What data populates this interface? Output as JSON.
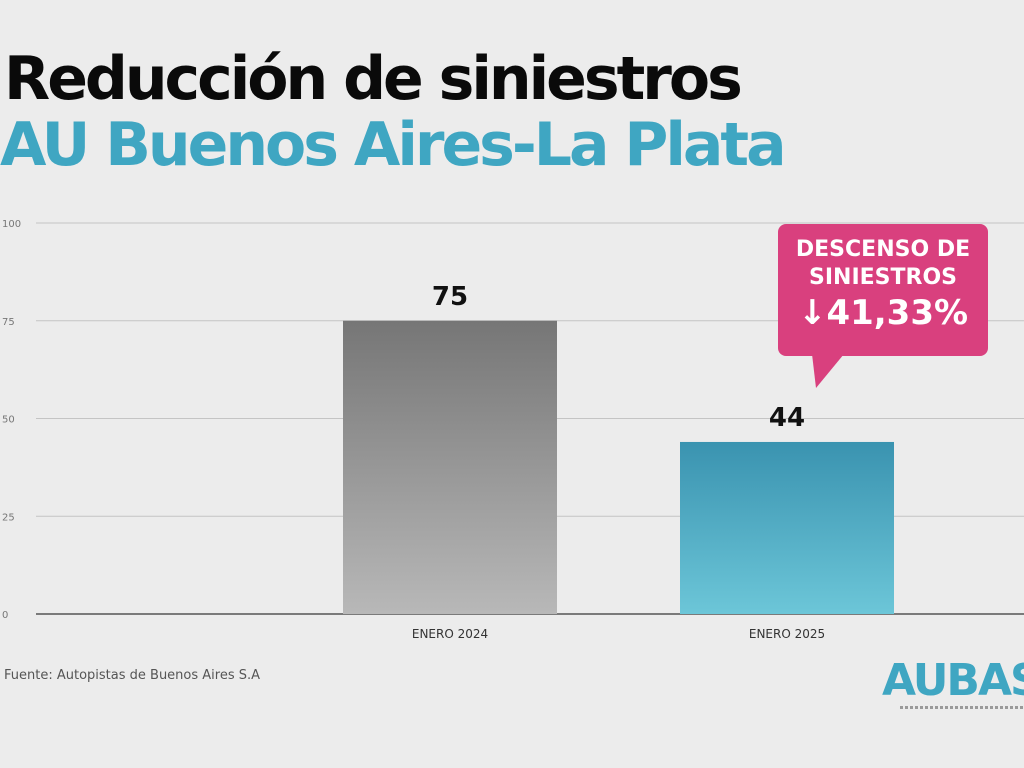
{
  "title": "Reducción de siniestros",
  "subtitle": "AU Buenos Aires-La Plata",
  "callout": {
    "line1": "DESCENSO DE",
    "line2": "SINIESTROS",
    "arrow": "🠗",
    "value": "41,33%"
  },
  "source": "Fuente: Autopistas de Buenos Aires S.A",
  "logo": "AUBAS",
  "colors": {
    "title": "#0a0a0a",
    "subtitle": "#3fa6c2",
    "callout": "#d9407e",
    "bar_2024": "#7a7a7a",
    "bar_2025": "#3f9fba"
  },
  "chart_data": {
    "type": "bar",
    "categories": [
      "ENERO 2024",
      "ENERO 2025"
    ],
    "values": [
      75,
      44
    ],
    "ylim": [
      0,
      100
    ],
    "yticks": [
      "0",
      "25",
      "50",
      "75",
      "100"
    ],
    "data_labels": [
      "75",
      "44"
    ],
    "grid": true
  }
}
